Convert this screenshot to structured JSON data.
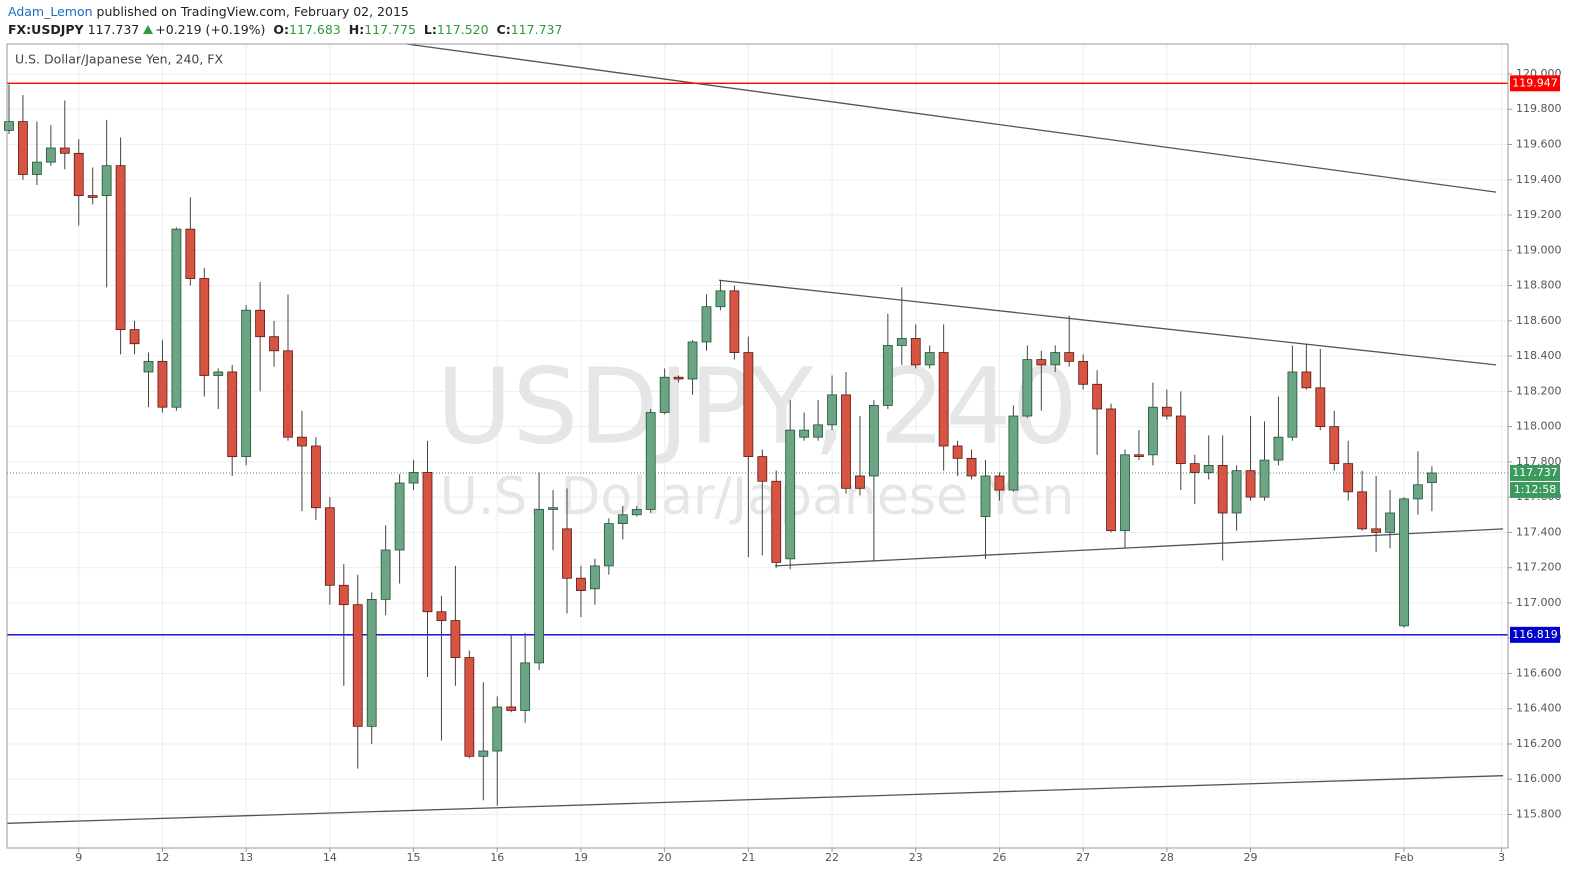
{
  "header": {
    "author": "Adam_Lemon",
    "published": "published on TradingView.com, February 02, 2015",
    "symbol": "FX:USDJPY",
    "last": "117.737",
    "change": "+0.219 (+0.19%)",
    "ohlc": [
      {
        "label": "O:",
        "value": "117.683"
      },
      {
        "label": "H:",
        "value": "117.775"
      },
      {
        "label": "L:",
        "value": "117.520"
      },
      {
        "label": "C:",
        "value": "117.737"
      }
    ]
  },
  "chart_data": {
    "type": "candlestick",
    "title": "U.S. Dollar/Japanese Yen, 240, FX",
    "watermark": [
      "USDJPY, 240",
      "U.S. Dollar/Japanese Yen"
    ],
    "up_color": "#6ba583",
    "up_border": "#225437",
    "down_color": "#d75442",
    "down_border": "#5b1a13",
    "wick_color": "#444444",
    "categories": [
      null,
      null,
      null,
      null,
      null,
      "9",
      null,
      null,
      null,
      null,
      null,
      "12",
      null,
      null,
      null,
      null,
      null,
      "13",
      null,
      null,
      null,
      null,
      null,
      "14",
      null,
      null,
      null,
      null,
      null,
      "15",
      null,
      null,
      null,
      null,
      null,
      "16",
      null,
      null,
      null,
      null,
      null,
      "19",
      null,
      null,
      null,
      null,
      null,
      "20",
      null,
      null,
      null,
      null,
      null,
      "21",
      null,
      null,
      null,
      null,
      null,
      "22",
      null,
      null,
      null,
      null,
      null,
      "23",
      null,
      null,
      null,
      null,
      null,
      "26",
      null,
      null,
      null,
      null,
      null,
      "27",
      null,
      null,
      null,
      null,
      null,
      "28",
      null,
      null,
      null,
      null,
      null,
      "29",
      null,
      null,
      null,
      null,
      null,
      null,
      null,
      null,
      null,
      null,
      "Feb",
      null,
      null,
      null,
      null,
      null,
      null,
      "3"
    ],
    "open": [
      119.68,
      119.73,
      119.43,
      119.5,
      119.58,
      119.55,
      119.31,
      119.31,
      119.48,
      118.55,
      118.31,
      118.37,
      118.11,
      119.12,
      118.84,
      118.29,
      118.31,
      117.83,
      118.66,
      118.51,
      118.43,
      117.94,
      117.89,
      117.54,
      117.1,
      116.99,
      116.3,
      117.02,
      117.3,
      117.68,
      117.74,
      116.95,
      116.9,
      116.69,
      116.13,
      116.16,
      116.41,
      116.39,
      116.66,
      117.53,
      117.42,
      117.14,
      117.08,
      117.21,
      117.45,
      117.5,
      117.53,
      118.08,
      118.28,
      118.27,
      118.48,
      118.68,
      118.77,
      118.42,
      117.83,
      117.69,
      117.25,
      117.94,
      117.94,
      118.01,
      118.18,
      117.72,
      117.72,
      118.12,
      118.46,
      118.5,
      118.35,
      118.42,
      117.89,
      117.82,
      117.49,
      117.72,
      117.64,
      118.06,
      118.38,
      118.35,
      118.42,
      118.37,
      118.24,
      118.1,
      117.41,
      117.84,
      117.84,
      118.11,
      118.06,
      117.79,
      117.74,
      117.78,
      117.51,
      117.75,
      117.6,
      117.81,
      117.94,
      118.31,
      118.22,
      118.0,
      117.79,
      117.63,
      117.42,
      117.4,
      116.87,
      117.59,
      117.683,
      null,
      null,
      null,
      null,
      null
    ],
    "high": [
      119.94,
      119.88,
      119.73,
      119.71,
      119.85,
      119.63,
      119.47,
      119.74,
      119.64,
      118.6,
      118.42,
      118.49,
      119.13,
      119.3,
      118.9,
      118.33,
      118.35,
      118.69,
      118.82,
      118.6,
      118.75,
      118.09,
      117.94,
      117.6,
      117.22,
      117.16,
      117.06,
      117.44,
      117.73,
      117.81,
      117.92,
      117.04,
      117.21,
      116.73,
      116.55,
      116.47,
      116.82,
      116.83,
      117.74,
      117.64,
      117.65,
      117.21,
      117.25,
      117.48,
      117.55,
      117.55,
      118.1,
      118.33,
      118.29,
      118.49,
      118.75,
      118.83,
      118.8,
      118.51,
      117.87,
      117.75,
      118.15,
      118.08,
      118.15,
      118.29,
      118.31,
      118.06,
      118.15,
      118.64,
      118.79,
      118.58,
      118.46,
      118.58,
      117.92,
      117.87,
      117.81,
      117.74,
      118.12,
      118.46,
      118.43,
      118.46,
      118.63,
      118.41,
      118.32,
      118.13,
      117.87,
      117.98,
      118.25,
      118.21,
      118.2,
      117.84,
      117.95,
      117.95,
      117.78,
      118.06,
      118.03,
      118.17,
      118.46,
      118.47,
      118.44,
      118.09,
      117.92,
      117.75,
      117.72,
      117.64,
      117.6,
      117.86,
      117.775,
      null,
      null,
      null,
      null,
      null
    ],
    "low": [
      119.66,
      119.4,
      119.37,
      119.48,
      119.46,
      119.14,
      119.26,
      118.79,
      118.41,
      118.41,
      118.11,
      118.08,
      118.09,
      118.8,
      118.17,
      118.1,
      117.72,
      117.78,
      118.2,
      118.34,
      117.92,
      117.52,
      117.47,
      116.99,
      116.53,
      116.06,
      116.2,
      116.93,
      117.11,
      117.64,
      116.58,
      116.22,
      116.53,
      116.12,
      115.88,
      115.85,
      116.38,
      116.32,
      116.62,
      117.3,
      116.94,
      116.92,
      116.99,
      117.16,
      117.36,
      117.49,
      117.51,
      118.07,
      118.25,
      118.18,
      118.43,
      118.66,
      118.38,
      117.26,
      117.27,
      117.2,
      117.19,
      117.92,
      117.92,
      117.98,
      117.62,
      117.61,
      117.24,
      118.1,
      118.35,
      118.33,
      118.33,
      117.75,
      117.72,
      117.7,
      117.25,
      117.58,
      117.63,
      118.05,
      118.09,
      118.31,
      118.34,
      118.21,
      117.84,
      117.4,
      117.31,
      117.81,
      117.78,
      118.04,
      117.64,
      117.56,
      117.7,
      117.24,
      117.41,
      117.58,
      117.58,
      117.78,
      117.92,
      118.21,
      117.98,
      117.75,
      117.58,
      117.41,
      117.29,
      117.31,
      116.86,
      117.5,
      117.52,
      null,
      null,
      null,
      null,
      null
    ],
    "close": [
      119.73,
      119.43,
      119.5,
      119.58,
      119.55,
      119.31,
      119.3,
      119.48,
      118.55,
      118.47,
      118.37,
      118.11,
      119.12,
      118.84,
      118.29,
      118.31,
      117.83,
      118.66,
      118.51,
      118.43,
      117.94,
      117.89,
      117.54,
      117.1,
      116.99,
      116.3,
      117.02,
      117.3,
      117.68,
      117.74,
      116.95,
      116.9,
      116.69,
      116.13,
      116.16,
      116.41,
      116.39,
      116.66,
      117.53,
      117.54,
      117.14,
      117.07,
      117.21,
      117.45,
      117.5,
      117.53,
      118.08,
      118.28,
      118.27,
      118.48,
      118.68,
      118.77,
      118.42,
      117.83,
      117.69,
      117.23,
      117.98,
      117.98,
      118.01,
      118.18,
      117.65,
      117.65,
      118.12,
      118.46,
      118.5,
      118.35,
      118.42,
      117.89,
      117.82,
      117.72,
      117.72,
      117.64,
      118.06,
      118.38,
      118.35,
      118.42,
      118.37,
      118.24,
      118.1,
      117.41,
      117.84,
      117.83,
      118.11,
      118.06,
      117.79,
      117.74,
      117.78,
      117.51,
      117.75,
      117.6,
      117.81,
      117.94,
      118.31,
      118.22,
      118.0,
      117.79,
      117.63,
      117.42,
      117.4,
      117.51,
      117.59,
      117.67,
      117.737,
      null,
      null,
      null,
      null,
      null
    ],
    "ylim": [
      115.61,
      120.17
    ],
    "yticks": [
      {
        "value": 115.8,
        "label": "115.800"
      },
      {
        "value": 116,
        "label": "116.000"
      },
      {
        "value": 116.2,
        "label": "116.200"
      },
      {
        "value": 116.4,
        "label": "116.400"
      },
      {
        "value": 116.6,
        "label": "116.600"
      },
      {
        "value": 116.8,
        "label": "116.800"
      },
      {
        "value": 117,
        "label": "117.000"
      },
      {
        "value": 117.2,
        "label": "117.200"
      },
      {
        "value": 117.4,
        "label": "117.400"
      },
      {
        "value": 117.6,
        "label": "117.600"
      },
      {
        "value": 117.8,
        "label": "117.800"
      },
      {
        "value": 118,
        "label": "118.000"
      },
      {
        "value": 118.2,
        "label": "118.200"
      },
      {
        "value": 118.4,
        "label": "118.400"
      },
      {
        "value": 118.6,
        "label": "118.600"
      },
      {
        "value": 118.8,
        "label": "118.800"
      },
      {
        "value": 119,
        "label": "119.000"
      },
      {
        "value": 119.2,
        "label": "119.200"
      },
      {
        "value": 119.4,
        "label": "119.400"
      },
      {
        "value": 119.6,
        "label": "119.600"
      },
      {
        "value": 119.8,
        "label": "119.800"
      },
      {
        "value": 120,
        "label": "120.000"
      }
    ],
    "grid": true,
    "hlines": [
      {
        "value": 119.947,
        "color": "#ff0000"
      },
      {
        "value": 116.819,
        "color": "#0000cc"
      }
    ],
    "current_price": {
      "value": 117.737,
      "color": "#3c9a5f",
      "countdown": "1:12:58"
    },
    "trendlines": [
      {
        "x": [
          28.5,
          106.6
        ],
        "y": [
          120.17,
          119.33
        ],
        "color": "#555555"
      },
      {
        "x": [
          50.9,
          106.6
        ],
        "y": [
          118.83,
          118.35
        ],
        "color": "#555555"
      },
      {
        "x": [
          54.9,
          107.1
        ],
        "y": [
          117.21,
          117.42
        ],
        "color": "#555555"
      },
      {
        "x": [
          -0.1,
          107.1
        ],
        "y": [
          115.75,
          116.02
        ],
        "color": "#555555"
      }
    ]
  }
}
